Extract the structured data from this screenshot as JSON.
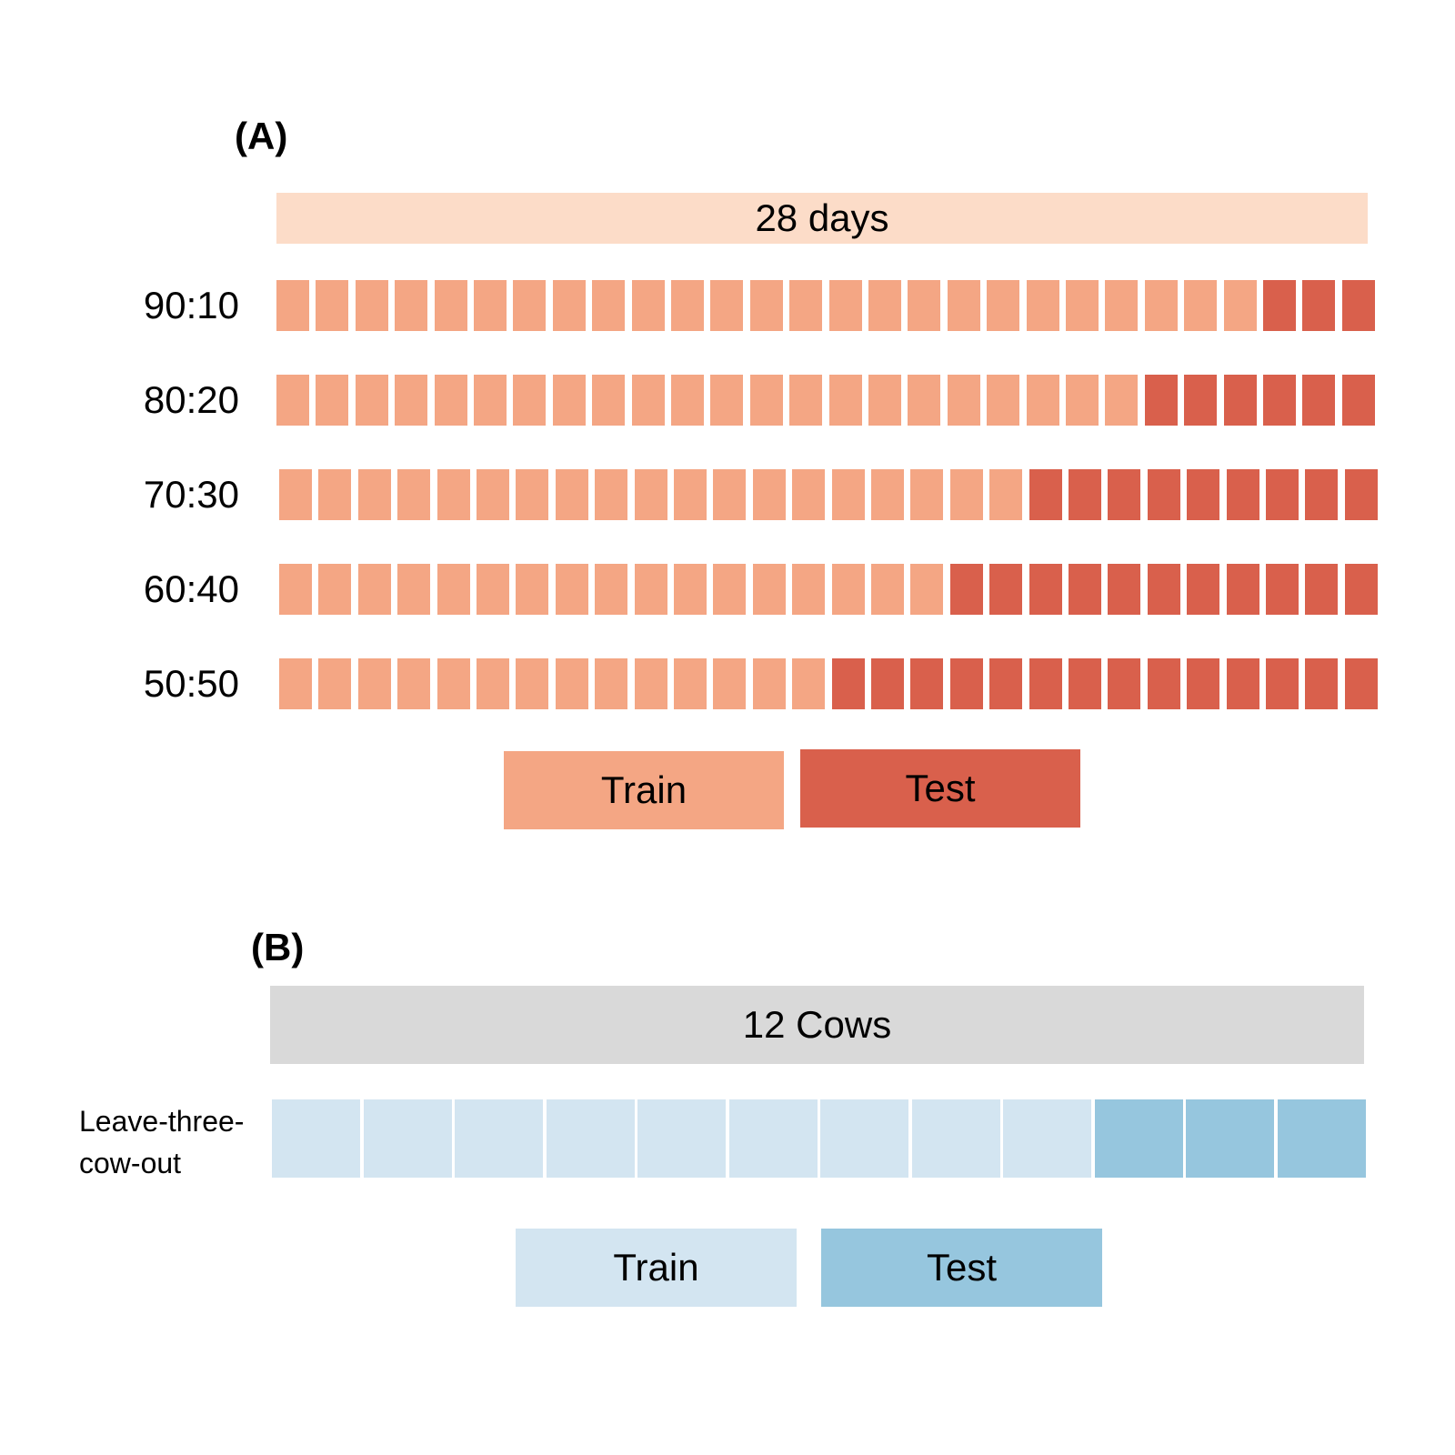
{
  "colors": {
    "days_header": "#fcdcc8",
    "train_a": "#f4a684",
    "test_a": "#d9604c",
    "cows_header": "#d9d9d9",
    "train_b": "#d3e5f1",
    "test_b": "#96c6de"
  },
  "panel_a": {
    "label": "(A)",
    "header": "28 days",
    "total_days": 28,
    "rows": [
      {
        "label": "90:10",
        "train_days": 25
      },
      {
        "label": "80:20",
        "train_days": 22
      },
      {
        "label": "70:30",
        "train_days": 19
      },
      {
        "label": "60:40",
        "train_days": 17
      },
      {
        "label": "50:50",
        "train_days": 14
      }
    ],
    "legend": {
      "train": "Train",
      "test": "Test"
    }
  },
  "panel_b": {
    "label": "(B)",
    "header": "12 Cows",
    "total_cows": 12,
    "row": {
      "label_line1": "Leave-three-",
      "label_line2": "cow-out",
      "train_cows": 9
    },
    "legend": {
      "train": "Train",
      "test": "Test"
    }
  }
}
